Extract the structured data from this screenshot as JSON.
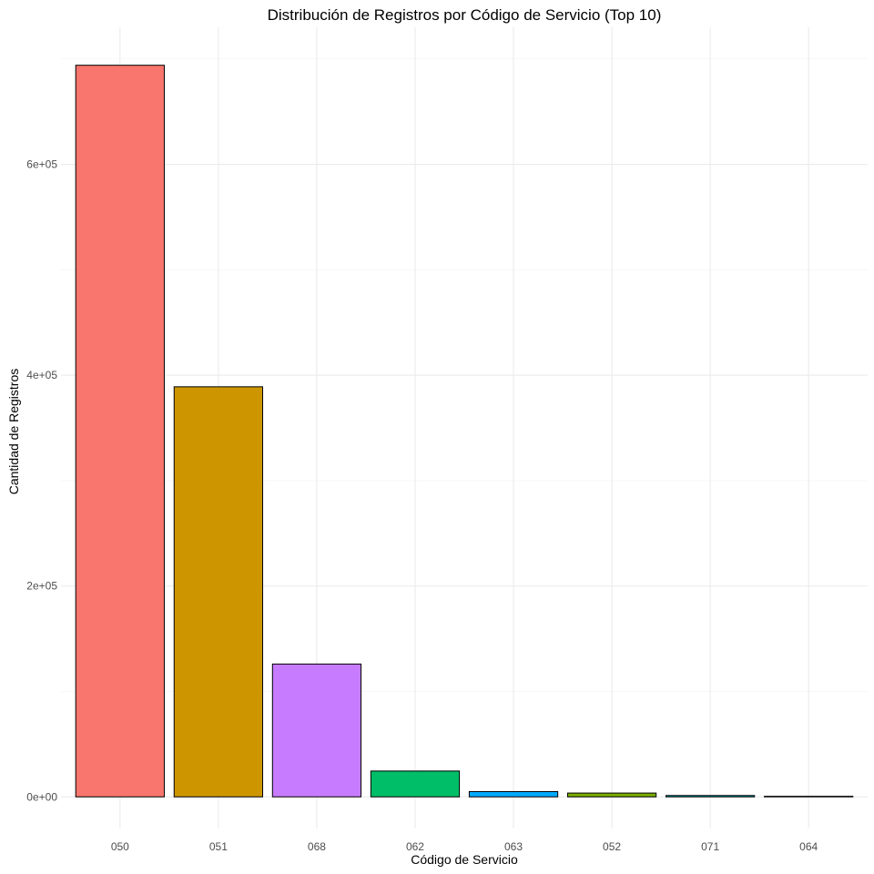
{
  "chart_data": {
    "type": "bar",
    "title": "Distribución de Registros por Código de Servicio (Top 10)",
    "xlabel": "Código de Servicio",
    "ylabel": "Cantidad de Registros",
    "categories": [
      "050",
      "051",
      "068",
      "062",
      "063",
      "052",
      "071",
      "064"
    ],
    "values": [
      694000,
      389000,
      126000,
      24500,
      5000,
      3600,
      1300,
      500
    ],
    "colors": [
      "#F8766D",
      "#CD9600",
      "#C77CFF",
      "#00BE67",
      "#00A9FF",
      "#7CAE00",
      "#00BFC4",
      "#FF61C3"
    ],
    "bar_outline": "#000000",
    "ylim": [
      -30000,
      730000
    ],
    "y_ticks": [
      0,
      200000,
      400000,
      600000
    ],
    "y_tick_labels": [
      "0e+00",
      "2e+05",
      "4e+05",
      "6e+05"
    ],
    "grid": true,
    "legend": "none"
  }
}
